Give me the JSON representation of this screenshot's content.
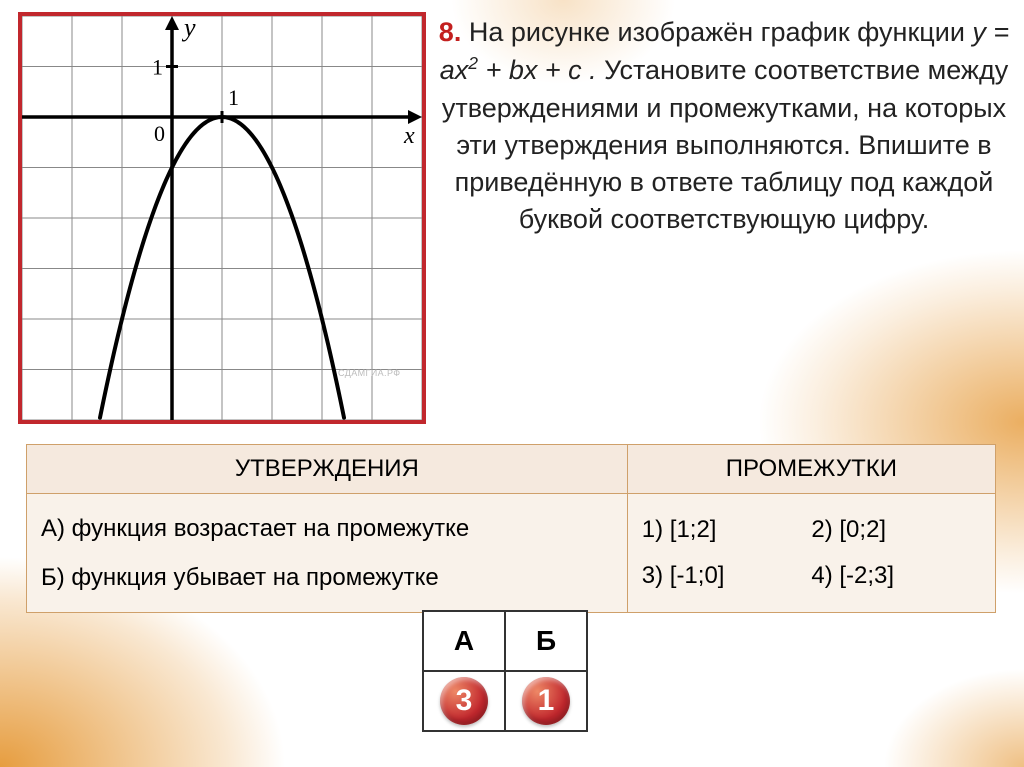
{
  "colors": {
    "frame_border": "#c1272d",
    "table_border": "#cfa06a",
    "table_header_bg": "#f5e9de",
    "table_body_bg": "#f9f2ea",
    "question_number": "#c3201f",
    "answer_bubble_bg": "#c1272d",
    "answer_bubble_text": "#ffffff",
    "graph_grid": "#888888",
    "graph_axis": "#000000",
    "graph_curve": "#000000"
  },
  "question": {
    "number": "8.",
    "text_before": " На рисунке изображён график функции ",
    "formula_prefix": "y = ax",
    "formula_exp": "2",
    "formula_suffix": " + bx + c .",
    "text_after": " Установите соответствие между утверждениями и промежутками, на которых эти утверждения выполняются. Впишите в приведённую в ответе таблицу под каждой буквой соответствующую цифру."
  },
  "graph": {
    "axis_labels": {
      "x": "x",
      "y": "y",
      "origin": "0",
      "tick": "1"
    },
    "grid": {
      "xmin": -3,
      "xmax": 5,
      "ymin": -6,
      "ymax": 2,
      "step": 1
    },
    "parabola": {
      "a": -1,
      "h": 1,
      "k": 0
    },
    "watermark": "СДАМГИА.РФ"
  },
  "table": {
    "header_left": "УТВЕРЖДЕНИЯ",
    "header_right": "ПРОМЕЖУТКИ",
    "statements": [
      "А) функция возрастает на промежутке",
      "Б) функция убывает на промежутке"
    ],
    "intervals": [
      "1) [1;2]",
      "2) [0;2]",
      "3) [-1;0]",
      "4) [-2;3]"
    ]
  },
  "answer": {
    "headers": [
      "А",
      "Б"
    ],
    "values": [
      "3",
      "1"
    ]
  }
}
